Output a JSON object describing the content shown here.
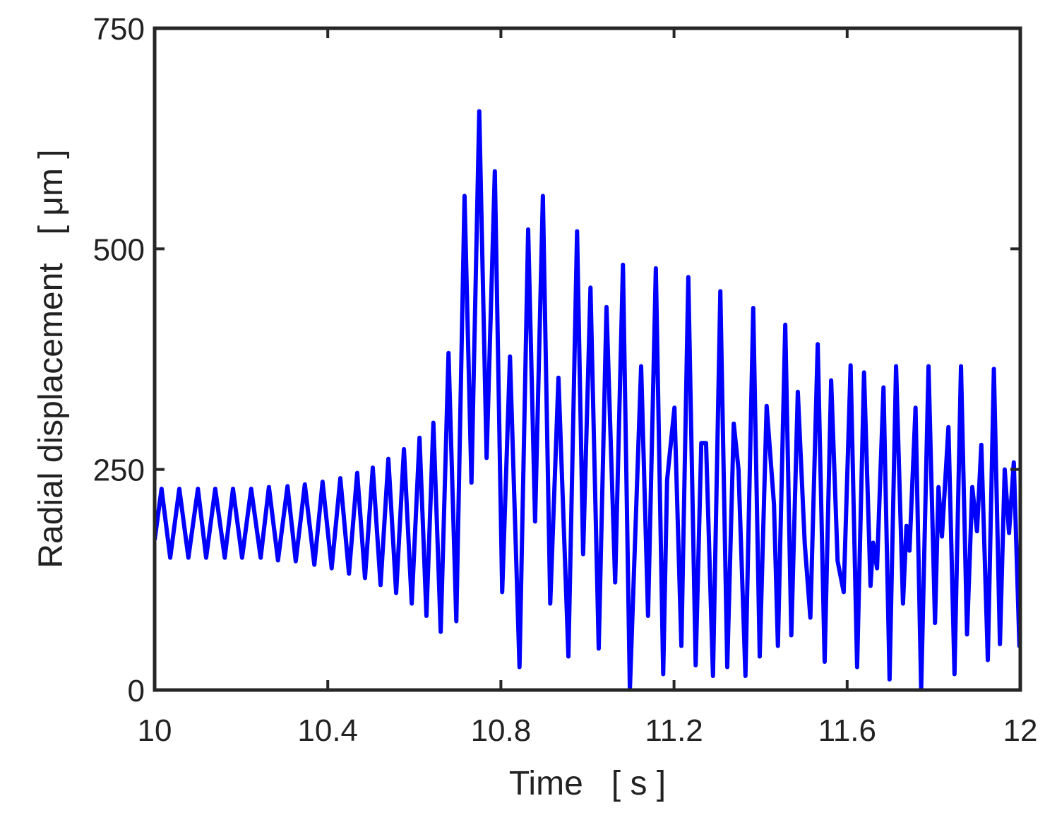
{
  "chart_data": {
    "type": "line",
    "x_label": "Time   [ s ]",
    "y_label": "Radial displacement   [ μm ]",
    "xlim": [
      10,
      12
    ],
    "xticks": [
      10,
      10.4,
      10.8,
      11.2,
      11.6,
      12
    ],
    "ylim": [
      0,
      750
    ],
    "yticks": [
      0,
      250,
      500,
      750
    ],
    "series": [
      {
        "color": "#0000ff",
        "x": [
          10,
          10.016,
          10.036,
          10.057,
          10.078,
          10.1,
          10.119,
          10.14,
          10.162,
          10.181,
          10.202,
          10.223,
          10.245,
          10.264,
          10.285,
          10.307,
          10.326,
          10.347,
          10.369,
          10.388,
          10.409,
          10.429,
          10.449,
          10.468,
          10.486,
          10.504,
          10.522,
          10.54,
          10.558,
          10.576,
          10.594,
          10.612,
          10.628,
          10.644,
          10.661,
          10.679,
          10.697,
          10.716,
          10.732,
          10.75,
          10.767,
          10.786,
          10.803,
          10.821,
          10.843,
          10.863,
          10.879,
          10.897,
          10.914,
          10.933,
          10.956,
          10.976,
          10.99,
          11.007,
          11.026,
          11.044,
          11.064,
          11.082,
          11.098,
          11.124,
          11.14,
          11.158,
          11.175,
          11.184,
          11.201,
          11.217,
          11.233,
          11.25,
          11.263,
          11.274,
          11.29,
          11.307,
          11.323,
          11.338,
          11.349,
          11.365,
          11.383,
          11.398,
          11.414,
          11.431,
          11.44,
          11.457,
          11.471,
          11.486,
          11.502,
          11.515,
          11.532,
          11.548,
          11.563,
          11.578,
          11.592,
          11.608,
          11.623,
          11.639,
          11.654,
          11.66,
          11.669,
          11.684,
          11.698,
          11.713,
          11.729,
          11.737,
          11.744,
          11.758,
          11.771,
          11.788,
          11.803,
          11.811,
          11.819,
          11.834,
          11.848,
          11.863,
          11.877,
          11.889,
          11.9,
          11.91,
          11.925,
          11.939,
          11.953,
          11.964,
          11.974,
          11.985,
          11.998,
          12
        ],
        "values": [
          170,
          228,
          150,
          228,
          150,
          228,
          150,
          228,
          150,
          228,
          150,
          228,
          150,
          230,
          147,
          231,
          146,
          233,
          142,
          236,
          138,
          240,
          132,
          246,
          127,
          252,
          119,
          262,
          110,
          273,
          98,
          286,
          84,
          303,
          66,
          382,
          78,
          560,
          235,
          656,
          263,
          588,
          111,
          378,
          26,
          522,
          191,
          560,
          98,
          354,
          38,
          520,
          154,
          456,
          47,
          434,
          122,
          482,
          0,
          367,
          84,
          478,
          18,
          238,
          320,
          50,
          468,
          28,
          280,
          280,
          16,
          452,
          26,
          302,
          250,
          16,
          433,
          38,
          322,
          210,
          50,
          414,
          62,
          338,
          166,
          82,
          392,
          32,
          351,
          146,
          111,
          368,
          26,
          360,
          118,
          167,
          138,
          343,
          12,
          367,
          98,
          186,
          158,
          320,
          0,
          367,
          76,
          230,
          174,
          298,
          18,
          367,
          63,
          230,
          180,
          278,
          34,
          364,
          52,
          250,
          178,
          258,
          50,
          158
        ]
      }
    ]
  }
}
